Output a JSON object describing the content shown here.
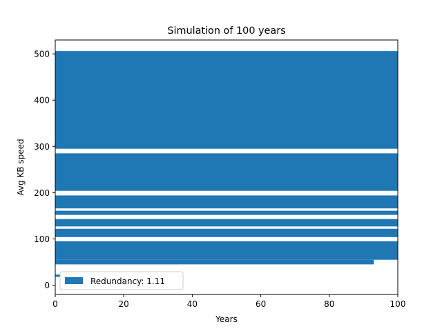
{
  "chart_data": {
    "type": "bar",
    "orientation": "horizontal",
    "title": "Simulation of 100 years",
    "xlabel": "Years",
    "ylabel": "Avg KB speed",
    "xlim": [
      0,
      100
    ],
    "ylim": [
      -20,
      530
    ],
    "xticks": [
      0,
      20,
      40,
      60,
      80,
      100
    ],
    "yticks": [
      0,
      100,
      200,
      300,
      400,
      500
    ],
    "grid": false,
    "legend_position": "lower-left",
    "series": [
      {
        "name": "Redundancy: 1.11",
        "color": "#1f77b4",
        "bars": [
          {
            "y0": 18,
            "y1": 23,
            "x": 1.5
          },
          {
            "y0": 45,
            "y1": 55,
            "x": 93
          },
          {
            "y0": 55,
            "y1": 95,
            "x": 100
          },
          {
            "y0": 104,
            "y1": 122,
            "x": 100
          },
          {
            "y0": 127,
            "y1": 143,
            "x": 100
          },
          {
            "y0": 152,
            "y1": 161,
            "x": 100
          },
          {
            "y0": 166,
            "y1": 194,
            "x": 100
          },
          {
            "y0": 204,
            "y1": 285,
            "x": 100
          },
          {
            "y0": 295,
            "y1": 506,
            "x": 100
          }
        ]
      }
    ]
  }
}
